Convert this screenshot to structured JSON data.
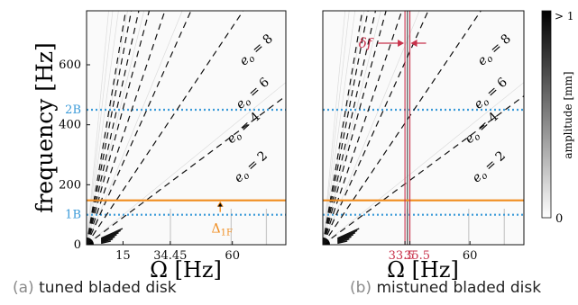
{
  "colors": {
    "orange": "#f08c1e",
    "blue": "#3a9ad8",
    "red": "#c8324b",
    "dashed": "#111111"
  },
  "chart_data": [
    {
      "type": "heatmap",
      "panel": "(a)",
      "caption": "tuned bladed disk",
      "ylabel": "frequency [Hz]",
      "xlabel": "Ω [Hz]",
      "xlim": [
        0,
        82
      ],
      "ylim": [
        0,
        780
      ],
      "y_ticks": [
        {
          "value": 0,
          "label": "0"
        },
        {
          "value": 200,
          "label": "200"
        },
        {
          "value": 400,
          "label": "400"
        },
        {
          "value": 600,
          "label": "600"
        }
      ],
      "x_ticks": [
        {
          "value": 15,
          "label": "15"
        },
        {
          "value": 34.45,
          "label": "34.45"
        },
        {
          "value": 60,
          "label": "60"
        }
      ],
      "blade_lines": [
        {
          "value": 100,
          "label": "1B"
        },
        {
          "value": 450,
          "label": "2B"
        }
      ],
      "orange_line": {
        "value": 148
      },
      "delta_label": "Δ",
      "delta_sub": "1F",
      "engine_orders": [
        {
          "eo": 2,
          "label": "e",
          "sub": "o",
          "suffix": " = 2"
        },
        {
          "eo": 4,
          "label": "e",
          "sub": "o",
          "suffix": " = 4"
        },
        {
          "eo": 6,
          "label": "e",
          "sub": "o",
          "suffix": " = 6"
        },
        {
          "eo": 8,
          "label": "e",
          "sub": "o",
          "suffix": " = 8"
        }
      ]
    },
    {
      "type": "heatmap",
      "panel": "(b)",
      "caption": "mistuned bladed disk",
      "xlabel": "Ω [Hz]",
      "xlim": [
        0,
        82
      ],
      "ylim": [
        0,
        780
      ],
      "x_ticks": [
        {
          "value": 33.5,
          "label": "33.5"
        },
        {
          "value": 35.5,
          "label": "35.5"
        },
        {
          "value": 60,
          "label": "60"
        }
      ],
      "blade_lines": [
        {
          "value": 100
        },
        {
          "value": 450
        }
      ],
      "orange_line": {
        "value": 148
      },
      "band": {
        "x0": 33.5,
        "x1": 35.5,
        "label": "δf"
      },
      "engine_orders": [
        {
          "eo": 2,
          "label": "e",
          "sub": "o",
          "suffix": " = 2"
        },
        {
          "eo": 4,
          "label": "e",
          "sub": "o",
          "suffix": " = 4"
        },
        {
          "eo": 6,
          "label": "e",
          "sub": "o",
          "suffix": " = 6"
        },
        {
          "eo": 8,
          "label": "e",
          "sub": "o",
          "suffix": " = 8"
        }
      ]
    }
  ],
  "colorbar": {
    "label": "amplitude [mm]",
    "max_label": "> 1",
    "min_label": "0",
    "range": [
      0,
      1
    ]
  },
  "captions": {
    "a_label": "(a)",
    "a_text": "tuned bladed disk",
    "b_label": "(b)",
    "b_text": "mistuned bladed disk"
  }
}
